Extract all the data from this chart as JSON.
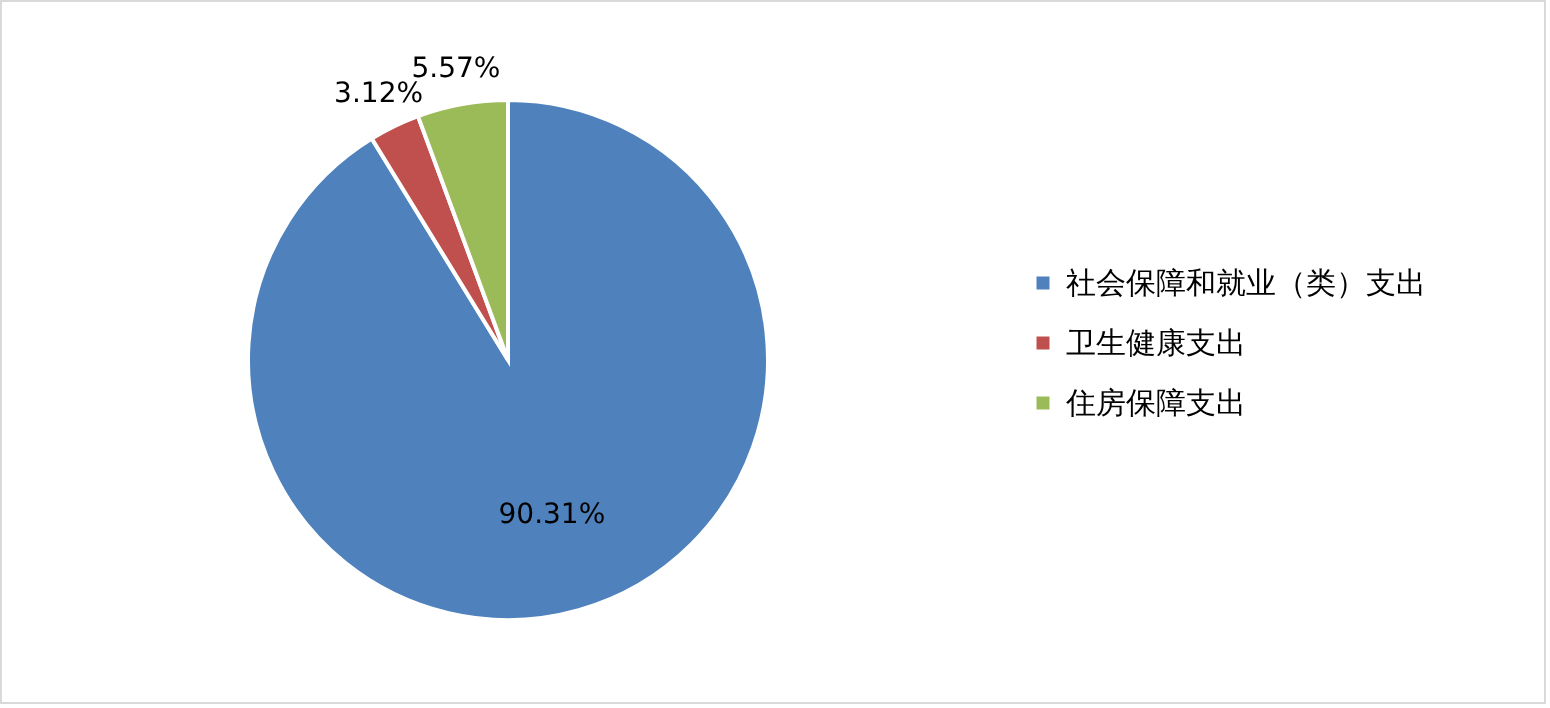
{
  "chart_data": {
    "type": "pie",
    "categories": [
      "社会保障和就业（类）支出",
      "卫生健康支出",
      "住房保障支出"
    ],
    "values": [
      90.31,
      3.12,
      5.57
    ],
    "colors": [
      "#4f81bd",
      "#c0504d",
      "#9bbb59"
    ],
    "value_labels": [
      "90.31%",
      "3.12%",
      "5.57%"
    ],
    "data_labels": true,
    "legend": "right"
  }
}
